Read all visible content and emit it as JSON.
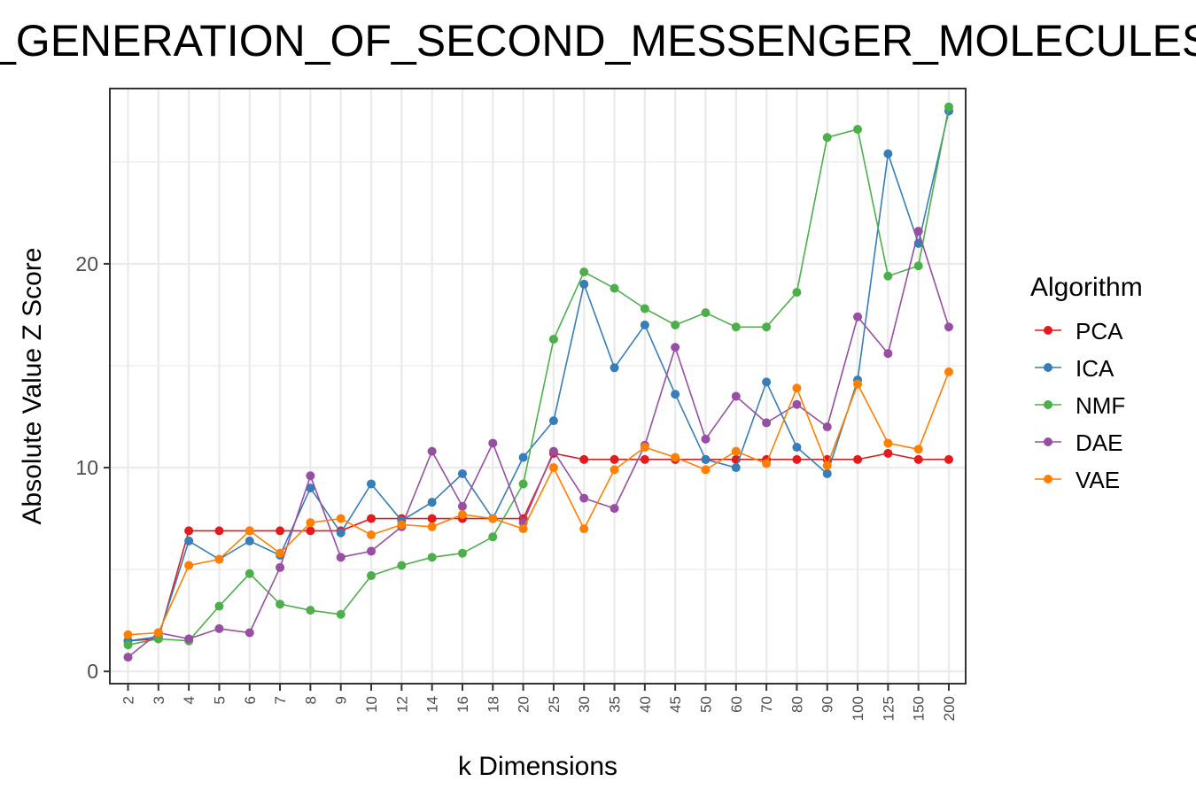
{
  "chart_data": {
    "type": "line",
    "title": "_GENERATION_OF_SECOND_MESSENGER_MOLECULES",
    "xlabel": "k Dimensions",
    "ylabel": "Absolute Value Z Score",
    "categories": [
      "2",
      "3",
      "4",
      "5",
      "6",
      "7",
      "8",
      "9",
      "10",
      "12",
      "14",
      "16",
      "18",
      "20",
      "25",
      "30",
      "35",
      "40",
      "45",
      "50",
      "60",
      "70",
      "80",
      "90",
      "100",
      "125",
      "150",
      "200"
    ],
    "yticks": [
      0,
      10,
      20
    ],
    "ylim": [
      -0.6,
      28.6
    ],
    "grid": true,
    "legend": {
      "title": "Algorithm",
      "position": "right"
    },
    "series": [
      {
        "name": "PCA",
        "color": "#e41a1c",
        "values": [
          1.5,
          1.6,
          6.9,
          6.9,
          6.9,
          6.9,
          6.9,
          6.9,
          7.5,
          7.5,
          7.5,
          7.5,
          7.5,
          7.5,
          10.7,
          10.4,
          10.4,
          10.4,
          10.4,
          10.4,
          10.4,
          10.4,
          10.4,
          10.4,
          10.4,
          10.7,
          10.4,
          10.4
        ]
      },
      {
        "name": "ICA",
        "color": "#377eb8",
        "values": [
          1.5,
          1.7,
          6.4,
          5.5,
          6.4,
          5.7,
          9.0,
          6.8,
          9.2,
          7.4,
          8.3,
          9.7,
          7.5,
          10.5,
          12.3,
          19.0,
          14.9,
          17.0,
          13.6,
          10.4,
          10.0,
          14.2,
          11.0,
          9.7,
          14.3,
          25.4,
          21.0,
          27.5
        ]
      },
      {
        "name": "NMF",
        "color": "#4daf4a",
        "values": [
          1.3,
          1.6,
          1.5,
          3.2,
          4.8,
          3.3,
          3.0,
          2.8,
          4.7,
          5.2,
          5.6,
          5.8,
          6.6,
          9.2,
          16.3,
          19.6,
          18.8,
          17.8,
          17.0,
          17.6,
          16.9,
          16.9,
          18.6,
          26.2,
          26.6,
          19.4,
          19.9,
          27.7
        ]
      },
      {
        "name": "DAE",
        "color": "#984ea3",
        "values": [
          0.7,
          1.9,
          1.6,
          2.1,
          1.9,
          5.1,
          9.6,
          5.6,
          5.9,
          7.1,
          10.8,
          8.1,
          11.2,
          7.3,
          10.8,
          8.5,
          8.0,
          11.1,
          15.9,
          11.4,
          13.5,
          12.2,
          13.1,
          12.0,
          17.4,
          15.6,
          21.6,
          16.9
        ]
      },
      {
        "name": "VAE",
        "color": "#ff7f00",
        "values": [
          1.8,
          1.9,
          5.2,
          5.5,
          6.9,
          5.8,
          7.3,
          7.5,
          6.7,
          7.2,
          7.1,
          7.7,
          7.5,
          7.0,
          10.0,
          7.0,
          9.9,
          11.0,
          10.5,
          9.9,
          10.8,
          10.2,
          13.9,
          10.1,
          14.1,
          11.2,
          10.9,
          14.7
        ]
      }
    ]
  }
}
